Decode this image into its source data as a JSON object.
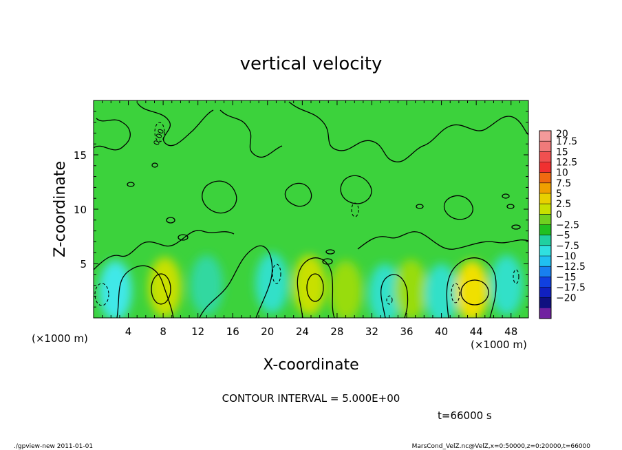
{
  "chart_data": {
    "type": "heatmap",
    "title": "vertical velocity",
    "xlabel": "X-coordinate",
    "ylabel": "Z-coordinate",
    "x_unit_left": "(×1000 m)",
    "x_unit_right": "(×1000 m)",
    "xlim": [
      0,
      50
    ],
    "ylim": [
      0,
      20
    ],
    "x_ticks": [
      4,
      8,
      12,
      16,
      20,
      24,
      28,
      32,
      36,
      40,
      44,
      48
    ],
    "y_ticks": [
      5,
      10,
      15
    ],
    "grid": false,
    "legend_position": "right",
    "colorbar_levels": [
      "20",
      "17.5",
      "15",
      "12.5",
      "10",
      "7.5",
      "5",
      "2.5",
      "0",
      "-2.5",
      "-5",
      "-7.5",
      "-10",
      "-12.5",
      "-15",
      "-17.5",
      "-20"
    ],
    "colorbar_colors": [
      "#f49a9a",
      "#f07a7a",
      "#f05050",
      "#f03030",
      "#f06a10",
      "#f0a000",
      "#e8d000",
      "#c8e000",
      "#70d020",
      "#20c020",
      "#20d0a0",
      "#30e0e0",
      "#20c0f0",
      "#1880f0",
      "#1040e0",
      "#1020c0",
      "#101080",
      "#7020a0"
    ],
    "contour_interval_text": "CONTOUR INTERVAL = 5.000E+00",
    "contour_label": "0.00",
    "time_text": "t=66000 s",
    "blobs": [
      {
        "x": 2.5,
        "y": 2.5,
        "v": -3.5
      },
      {
        "x": 8.2,
        "y": 2.8,
        "v": 4.0
      },
      {
        "x": 13.0,
        "y": 3.0,
        "v": -1.5
      },
      {
        "x": 20.5,
        "y": 3.2,
        "v": -2.5
      },
      {
        "x": 24.8,
        "y": 3.0,
        "v": 4.0
      },
      {
        "x": 29.0,
        "y": 2.5,
        "v": 2.5
      },
      {
        "x": 33.5,
        "y": 2.2,
        "v": -2.5
      },
      {
        "x": 36.5,
        "y": 2.6,
        "v": 2.0
      },
      {
        "x": 40.0,
        "y": 2.2,
        "v": -2.5
      },
      {
        "x": 43.5,
        "y": 2.5,
        "v": 5.0
      },
      {
        "x": 47.5,
        "y": 3.0,
        "v": -2.5
      }
    ]
  },
  "footer": {
    "left": "./gpview-new   2011-01-01",
    "right": "MarsCond_VelZ.nc@VelZ,x=0:50000,z=0:20000,t=66000"
  }
}
